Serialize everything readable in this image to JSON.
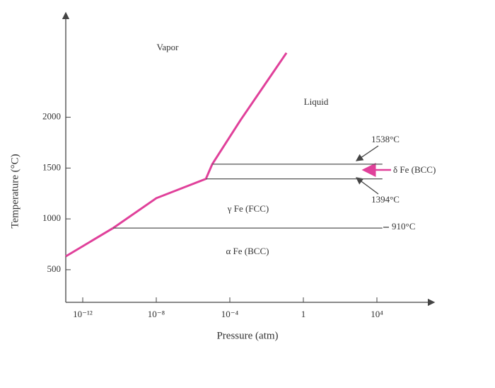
{
  "chart_data": {
    "type": "line",
    "xlabel": "Pressure (atm)",
    "ylabel": "Temperature (°C)",
    "xscale": "log",
    "xlim": [
      1e-13,
      10000000.0
    ],
    "ylim": [
      200,
      3000
    ],
    "xticks": [
      {
        "value": 1e-12,
        "label": "10⁻¹²"
      },
      {
        "value": 1e-08,
        "label": "10⁻⁸"
      },
      {
        "value": 0.0001,
        "label": "10⁻⁴"
      },
      1,
      {
        "value": 10000,
        "label": "10⁴"
      }
    ],
    "yticks": [
      500,
      1000,
      1500,
      2000
    ],
    "series": [
      {
        "color": "#e0409a",
        "x": [
          1.2e-13,
          4.5e-11,
          1e-08,
          5e-06,
          1.1e-05,
          0.00038,
          0.12
        ],
        "values": [
          632,
          910,
          1204,
          1394,
          1538,
          1971,
          2633
        ]
      },
      {
        "color": "#555555",
        "x": [
          4.5e-11,
          20000
        ],
        "values": [
          910,
          910
        ]
      },
      {
        "color": "#555555",
        "x": [
          5e-06,
          20000
        ],
        "values": [
          1394,
          1394
        ]
      },
      {
        "color": "#555555",
        "x": [
          1.1e-05,
          20000
        ],
        "values": [
          1538,
          1538
        ]
      }
    ],
    "annotations": [
      "Vapor",
      "Liquid",
      "γ Fe (FCC)",
      "α Fe (BCC)",
      "δ Fe (BCC)",
      "1538°C",
      "1394°C",
      "910°C"
    ]
  }
}
